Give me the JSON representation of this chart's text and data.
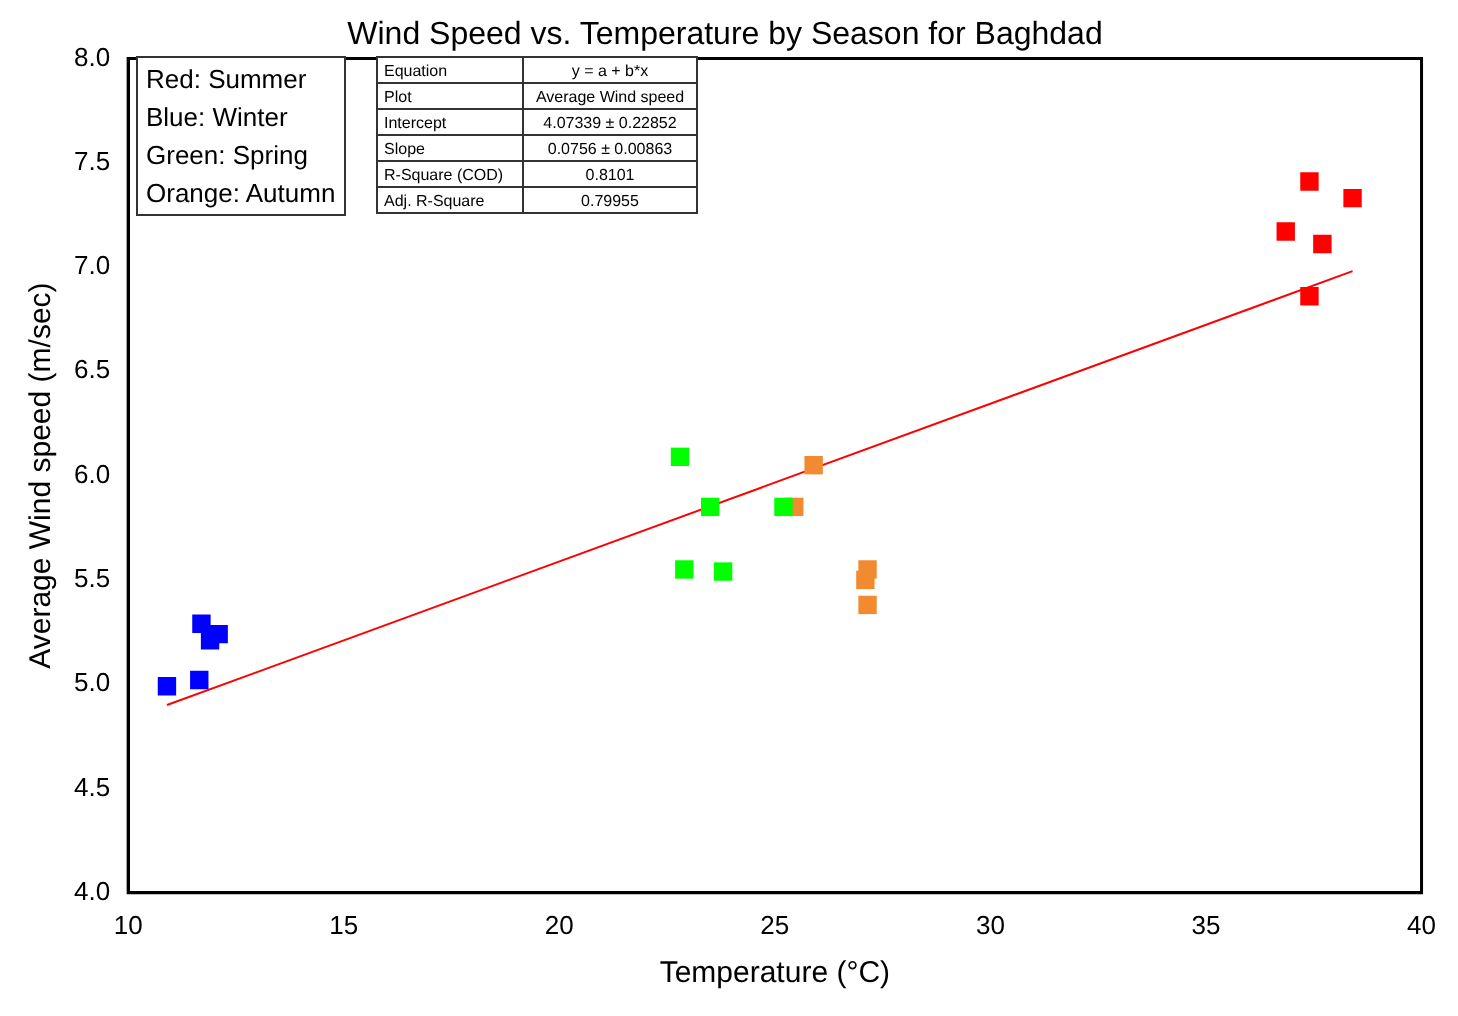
{
  "chart_data": {
    "type": "scatter",
    "title": "Wind Speed vs. Temperature by Season for Baghdad",
    "xlabel": "Temperature (°C)",
    "ylabel": "Average Wind speed (m/sec)",
    "xlim": [
      10,
      40
    ],
    "xticks": [
      10,
      15,
      20,
      25,
      30,
      35,
      40
    ],
    "ylim": [
      4,
      8
    ],
    "yticks": [
      {
        "value": 4,
        "label": "4.0"
      },
      {
        "value": 4.5,
        "label": "4.5"
      },
      {
        "value": 5,
        "label": "5.0"
      },
      {
        "value": 5.5,
        "label": "5.5"
      },
      {
        "value": 6,
        "label": "6.0"
      },
      {
        "value": 6.5,
        "label": "6.5"
      },
      {
        "value": 7,
        "label": "7.0"
      },
      {
        "value": 7.5,
        "label": "7.5"
      },
      {
        "value": 8,
        "label": "8.0"
      }
    ],
    "grid": false,
    "legend": false,
    "marker": "square",
    "series": [
      {
        "color": "#0000ff",
        "x": [
          10.9,
          11.7,
          12.1,
          11.9,
          11.65
        ],
        "values": [
          4.99,
          5.29,
          5.24,
          5.21,
          5.02
        ]
      },
      {
        "color": "#00ff00",
        "x": [
          22.8,
          23.5,
          25.2,
          22.9,
          23.8
        ],
        "values": [
          6.09,
          5.85,
          5.85,
          5.55,
          5.54
        ]
      },
      {
        "color": "#f28a30",
        "x": [
          25.9,
          25.45,
          27.15,
          27.1,
          27.15
        ],
        "values": [
          6.05,
          5.85,
          5.55,
          5.5,
          5.38
        ]
      },
      {
        "color": "#ff0000",
        "x": [
          37.4,
          38.4,
          36.85,
          37.7,
          37.4
        ],
        "values": [
          7.41,
          7.33,
          7.17,
          7.11,
          6.86
        ]
      },
      {
        "type": "line",
        "color": "#ff0000",
        "marker": "none",
        "x": [
          10.9,
          38.4
        ],
        "values": [
          4.9,
          6.98
        ]
      }
    ],
    "annotations": [
      "Red: Summer",
      "Blue: Winter",
      "Green: Spring",
      "Orange: Autumn",
      "Equation",
      "y = a + b*x",
      "Plot",
      "Average Wind speed",
      "Intercept",
      "4.07339 ± 0.22852",
      "Slope",
      "0.0756 ± 0.00863",
      "R-Square (COD)",
      "0.8101",
      "Adj. R-Square",
      "0.79955"
    ]
  }
}
